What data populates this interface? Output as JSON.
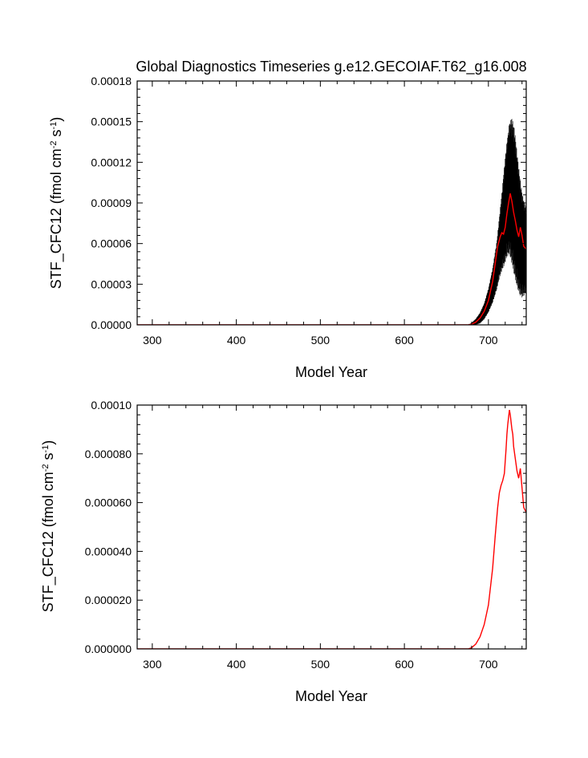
{
  "figure_title": "Global Diagnostics Timeseries g.e12.GECOIAF.T62_g16.008",
  "chart_data": [
    {
      "type": "line",
      "title": "Global Diagnostics Timeseries g.e12.GECOIAF.T62_g16.008",
      "xlabel": "Model Year",
      "ylabel_main": "STF_CFC12 (fmol cm",
      "ylabel_sup1": "-2",
      "ylabel_mid": " s",
      "ylabel_sup2": "-1",
      "ylabel_end": ")",
      "xlim": [
        282,
        745
      ],
      "ylim": [
        0,
        0.00018
      ],
      "x_ticks": [
        300,
        400,
        500,
        600,
        700
      ],
      "x_tick_labels": [
        "300",
        "400",
        "500",
        "600",
        "700"
      ],
      "y_ticks": [
        0,
        3e-05,
        6e-05,
        9e-05,
        0.00012,
        0.00015,
        0.00018
      ],
      "y_tick_labels": [
        "0.00000",
        "0.00003",
        "0.00006",
        "0.00009",
        "0.00012",
        "0.00015",
        "0.00018"
      ],
      "grid": false,
      "series": [
        {
          "color": "#000000",
          "style": "monthly-envelope",
          "x": [
            282,
            676,
            680,
            685,
            690,
            695,
            700,
            705,
            710,
            713,
            716,
            719,
            722,
            725,
            728,
            731,
            734,
            737,
            740,
            743,
            745
          ],
          "upper": [
            0,
            0,
            1.5e-06,
            4.5e-06,
            9e-06,
            1.6e-05,
            2.7e-05,
            4.2e-05,
            6.2e-05,
            8e-05,
            9.8e-05,
            0.000118,
            0.000136,
            0.00015,
            0.000153,
            0.000145,
            0.000128,
            0.000112,
            9.8e-05,
            9e-05,
            8.8e-05
          ],
          "lower": [
            0,
            0,
            0,
            0,
            1e-06,
            4e-06,
            9e-06,
            1.6e-05,
            2.6e-05,
            3.4e-05,
            4e-05,
            4.4e-05,
            5e-05,
            5.2e-05,
            4.5e-05,
            3.6e-05,
            2.8e-05,
            2.2e-05,
            2e-05,
            2.2e-05,
            2.4e-05
          ]
        },
        {
          "color": "#ff0000",
          "style": "annual-mean",
          "x": [
            282,
            676,
            680,
            685,
            690,
            695,
            700,
            705,
            708,
            711,
            714,
            716,
            718,
            720,
            722,
            724,
            726,
            728,
            730,
            732,
            734,
            736,
            738,
            740,
            742,
            745
          ],
          "values": [
            0,
            0,
            5e-07,
            2e-06,
            5e-06,
            1e-05,
            1.8e-05,
            3.2e-05,
            4.5e-05,
            5.8e-05,
            6.5e-05,
            6.8e-05,
            6.7e-05,
            7.2e-05,
            8.2e-05,
            9e-05,
            9.7e-05,
            9.1e-05,
            8.3e-05,
            7.7e-05,
            7e-05,
            6.5e-05,
            7.2e-05,
            6.6e-05,
            5.8e-05,
            5.6e-05
          ]
        }
      ]
    },
    {
      "type": "line",
      "title": "",
      "xlabel": "Model Year",
      "ylabel_main": "STF_CFC12 (fmol cm",
      "ylabel_sup1": "-2",
      "ylabel_mid": " s",
      "ylabel_sup2": "-1",
      "ylabel_end": ")",
      "xlim": [
        282,
        745
      ],
      "ylim": [
        0,
        0.0001
      ],
      "x_ticks": [
        300,
        400,
        500,
        600,
        700
      ],
      "x_tick_labels": [
        "300",
        "400",
        "500",
        "600",
        "700"
      ],
      "y_ticks": [
        0,
        2e-05,
        4e-05,
        6e-05,
        8e-05,
        0.0001
      ],
      "y_tick_labels": [
        "0.000000",
        "0.000020",
        "0.000040",
        "0.000060",
        "0.000080",
        "0.00010"
      ],
      "grid": false,
      "series": [
        {
          "color": "#ff0000",
          "style": "annual-mean",
          "x": [
            282,
            676,
            680,
            685,
            690,
            695,
            700,
            705,
            708,
            711,
            713,
            715,
            717,
            719,
            721,
            722,
            723,
            724,
            725,
            726,
            727,
            728,
            729,
            730,
            732,
            734,
            736,
            738,
            740,
            742,
            745
          ],
          "values": [
            0,
            0,
            5e-07,
            2e-06,
            5e-06,
            1e-05,
            1.8e-05,
            3.3e-05,
            4.6e-05,
            5.8e-05,
            6.4e-05,
            6.7e-05,
            6.9e-05,
            7.2e-05,
            8.2e-05,
            8.8e-05,
            9.2e-05,
            9.5e-05,
            9.8e-05,
            9.6e-05,
            9.3e-05,
            9e-05,
            8.8e-05,
            8.3e-05,
            7.8e-05,
            7.3e-05,
            7e-05,
            7.4e-05,
            6.6e-05,
            5.8e-05,
            5.6e-05
          ]
        }
      ]
    }
  ]
}
